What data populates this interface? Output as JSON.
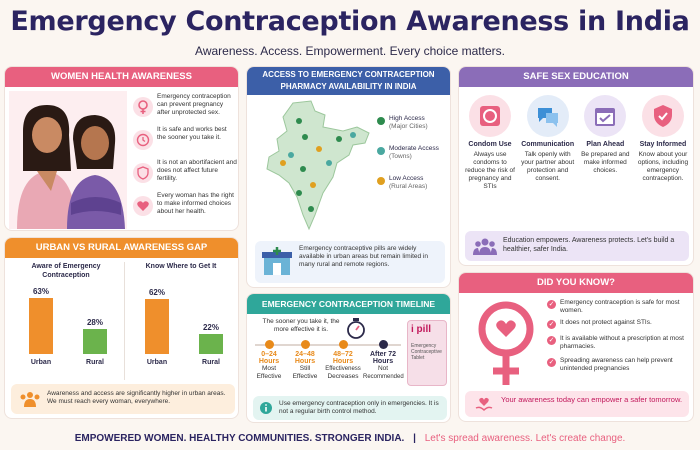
{
  "page": {
    "title": "Emergency Contraception Awareness in India",
    "subtitle": "Awareness. Access. Empowerment. Every choice matters."
  },
  "women_health": {
    "header": "WOMEN HEALTH AWARENESS",
    "facts": [
      "Emergency contraception can prevent pregnancy after unprotected sex.",
      "It is safe and works best the sooner you take it.",
      "It is not an abortifacient and does not affect future fertility.",
      "Every woman has the right to make informed choices about her health."
    ]
  },
  "access": {
    "header_line1": "ACCESS TO EMERGENCY CONTRACEPTION",
    "header_line2": "PHARMACY AVAILABILITY IN INDIA",
    "legend": [
      {
        "label": "High Access",
        "sub": "(Major Cities)",
        "color": "#2e8b4e"
      },
      {
        "label": "Moderate Access",
        "sub": "(Towns)",
        "color": "#4aa8a0"
      },
      {
        "label": "Low Access",
        "sub": "(Rural Areas)",
        "color": "#e0a020"
      }
    ],
    "note": "Emergency contraceptive pills are widely available in urban areas but remain limited in many rural and remote regions."
  },
  "safe_sex": {
    "header": "SAFE SEX EDUCATION",
    "items": [
      {
        "title": "Condom Use",
        "text": "Always use condoms to reduce the risk of pregnancy and STIs",
        "icon": "condom-icon"
      },
      {
        "title": "Communication",
        "text": "Talk openly with your partner about protection and consent.",
        "icon": "chat-icon"
      },
      {
        "title": "Plan Ahead",
        "text": "Be prepared and make informed choices.",
        "icon": "calendar-icon"
      },
      {
        "title": "Stay Informed",
        "text": "Know about your options, including emergency contraception.",
        "icon": "shield-icon"
      }
    ],
    "banner": "Education empowers. Awareness protects. Let's build a healthier, safer India."
  },
  "gap": {
    "header": "URBAN VS RURAL AWARENESS GAP",
    "left_title": "Aware of Emergency Contraception",
    "right_title": "Know Where to Get It",
    "left_values": [
      {
        "label": "Urban",
        "value": 63,
        "display": "63%"
      },
      {
        "label": "Rural",
        "value": 28,
        "display": "28%"
      }
    ],
    "right_values": [
      {
        "label": "Urban",
        "value": 62,
        "display": "62%"
      },
      {
        "label": "Rural",
        "value": 22,
        "display": "22%"
      }
    ],
    "note": "Awareness and access are significantly higher in urban areas. We must reach every woman, everywhere."
  },
  "timeline": {
    "header": "EMERGENCY CONTRACEPTION TIMELINE",
    "intro": "The sooner you take it, the more effective it is.",
    "steps": [
      {
        "time": "0–24",
        "unit": "Hours",
        "desc1": "Most",
        "desc2": "Effective",
        "color": "#e88a1a"
      },
      {
        "time": "24–48",
        "unit": "Hours",
        "desc1": "Still",
        "desc2": "Effective",
        "color": "#e88a1a"
      },
      {
        "time": "48–72",
        "unit": "Hours",
        "desc1": "Effectiveness",
        "desc2": "Decreases",
        "color": "#e88a1a"
      },
      {
        "time": "After 72",
        "unit": "Hours",
        "desc1": "Not",
        "desc2": "Recommended",
        "color": "#2c2a4a"
      }
    ],
    "box_brand": "i pill",
    "box_line1": "Emergency",
    "box_line2": "Contraceptive",
    "box_line3": "Tablet",
    "note": "Use emergency contraception only in emergencies. It is not a regular birth control method."
  },
  "did_you_know": {
    "header": "DID YOU KNOW?",
    "facts": [
      "Emergency contraception is safe for most women.",
      "It does not protect against STIs.",
      "It is available without a prescription at most pharmacies.",
      "Spreading awareness can help prevent unintended pregnancies"
    ],
    "banner": "Your awareness today can empower a safer tomorrow."
  },
  "footer": {
    "left": "EMPOWERED WOMEN. HEALTHY COMMUNITIES. STRONGER INDIA.",
    "right": "Let's spread awareness. Let's create change."
  },
  "colors": {
    "pink": "#e8607f",
    "orange": "#ef8f2c",
    "blue": "#3c5fa8",
    "purple": "#8b6db8",
    "teal": "#2fa79a",
    "green": "#6bb34c",
    "navy": "#2b2461"
  }
}
